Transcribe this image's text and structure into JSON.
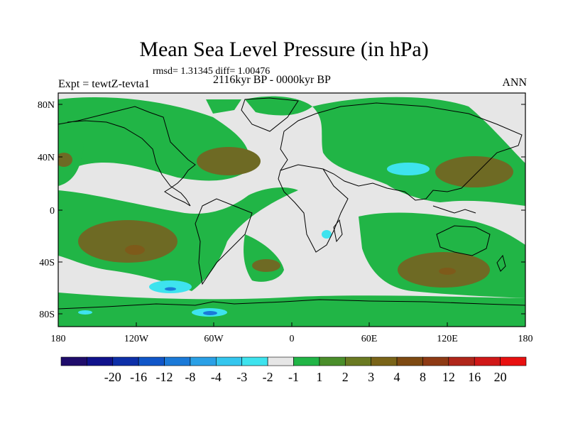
{
  "title": "Mean Sea Level Pressure (in hPa)",
  "stats": "rmsd= 1.31345 diff= 1.00476",
  "experiment": "Expt = tewtZ-tevta1",
  "period": "2116kyr BP - 0000kyr BP",
  "season": "ANN",
  "lat_labels": [
    "80N",
    "40N",
    "0",
    "40S",
    "80S"
  ],
  "lon_labels": [
    "180",
    "120W",
    "60W",
    "0",
    "60E",
    "120E",
    "180"
  ],
  "colorbar": {
    "colors": [
      "#1f0c6b",
      "#10128c",
      "#0d2fa8",
      "#1056c8",
      "#1b7ad8",
      "#2aa0e6",
      "#34c6ee",
      "#3ee3ee",
      "#e6e6e6",
      "#21b546",
      "#4a8e2a",
      "#6a7a22",
      "#7a6418",
      "#7e4a12",
      "#8e3a14",
      "#b0261a",
      "#d01818",
      "#e81010"
    ],
    "labels": [
      "-20",
      "-16",
      "-12",
      "-8",
      "-4",
      "-3",
      "-2",
      "-1",
      "1",
      "2",
      "3",
      "4",
      "8",
      "12",
      "16",
      "20"
    ]
  },
  "legend_colors": {
    "neutral": "#e6e6e6",
    "green": "#21b546",
    "dark": "#6e6a24",
    "cyan": "#3ee3ee",
    "blue": "#1b7ad8"
  }
}
